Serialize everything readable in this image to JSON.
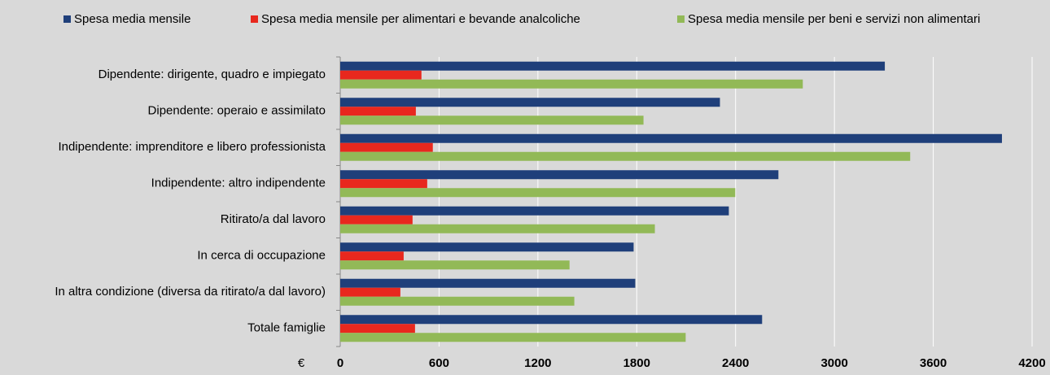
{
  "chart_data": {
    "type": "hbar",
    "categories": [
      "Dipendente: dirigente, quadro e impiegato",
      "Dipendente: operaio e assimilato",
      "Indipendente: imprenditore e libero professionista",
      "Indipendente: altro indipendente",
      "Ritirato/a dal lavoro",
      "In cerca di occupazione",
      "In altra condizione (diversa da ritirato/a dal lavoro)",
      "Totale famiglie"
    ],
    "series": [
      {
        "name": "Spesa media mensile",
        "color": "#1f3f7a",
        "values": [
          3306,
          2305,
          4017,
          2660,
          2359,
          1781,
          1791,
          2561
        ]
      },
      {
        "name": "Spesa media mensile per alimentari e bevande analcoliche",
        "color": "#e8281e",
        "values": [
          493,
          459,
          562,
          528,
          439,
          385,
          365,
          454
        ]
      },
      {
        "name": "Spesa media mensile per beni e servizi non alimentari",
        "color": "#92b957",
        "values": [
          2808,
          1841,
          3460,
          2398,
          1910,
          1392,
          1421,
          2097
        ]
      }
    ],
    "xlabel": "€",
    "xlim": [
      0,
      4200
    ],
    "xticks": [
      0,
      600,
      1200,
      1800,
      2400,
      3000,
      3600,
      4200
    ],
    "grid": true,
    "legend": "top"
  }
}
